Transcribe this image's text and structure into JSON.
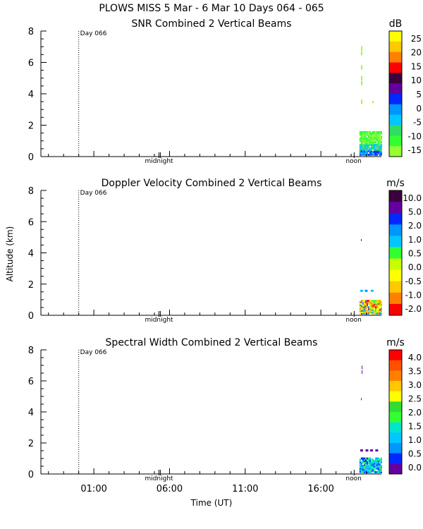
{
  "header": {
    "title": "PLOWS MISS   5 Mar -  6 Mar 10 Days 064 - 065"
  },
  "axes": {
    "x_title": "Time (UT)",
    "y_title": "Altitude (km)",
    "x_ticks": [
      "01:00",
      "06:00",
      "11:00",
      "16:00"
    ],
    "y_ticks": [
      "0",
      "2",
      "4",
      "6",
      "8"
    ],
    "day_marker": "Day 066",
    "midnight_label": "midnight",
    "noon_label": "noon"
  },
  "chart_data": [
    {
      "type": "heatmap",
      "title": "SNR Combined 2 Vertical Beams",
      "ylabel": "",
      "xlabel": "",
      "ylim": [
        0,
        8
      ],
      "colorbar": {
        "unit": "dB",
        "labels": [
          "25",
          "20",
          "15",
          "10",
          "5",
          "0",
          "-5",
          "-10",
          "-15"
        ],
        "colors": [
          "#ffff00",
          "#ffc800",
          "#ff8000",
          "#ff0000",
          "#3c003c",
          "#6400a0",
          "#0028ff",
          "#0096ff",
          "#00c8ff",
          "#32dc64",
          "#32ff32",
          "#96ff32"
        ]
      },
      "observations": "Returns only near end of period (~18:30-20:00 UT), mostly below 1.5 km with sparse points up to ~7 km"
    },
    {
      "type": "heatmap",
      "title": "Doppler Velocity Combined 2 Vertical Beams",
      "ylabel": "Altitude (km)",
      "xlabel": "",
      "ylim": [
        0,
        8
      ],
      "colorbar": {
        "unit": "m/s",
        "labels": [
          "10.0",
          "5.0",
          "2.0",
          "1.0",
          "0.5",
          "0.0",
          "-0.5",
          "-1.0",
          "-2.0"
        ],
        "colors": [
          "#3c003c",
          "#6400a0",
          "#0028ff",
          "#0096ff",
          "#00c8ff",
          "#32ff32",
          "#c8ff00",
          "#ffff00",
          "#ffc800",
          "#ff8000",
          "#ff0000"
        ]
      },
      "observations": "Returns only near end of period, below ~1.5 km"
    },
    {
      "type": "heatmap",
      "title": "Spectral Width Combined 2 Vertical Beams",
      "ylabel": "",
      "xlabel": "Time (UT)",
      "ylim": [
        0,
        8
      ],
      "colorbar": {
        "unit": "m/s",
        "labels": [
          "4.0",
          "3.5",
          "3.0",
          "2.5",
          "2.0",
          "1.5",
          "1.0",
          "0.5",
          "0.0"
        ],
        "colors": [
          "#ff0000",
          "#ff5000",
          "#ff8000",
          "#ffc800",
          "#ffff00",
          "#32dc32",
          "#32ff32",
          "#00e6c8",
          "#00c8ff",
          "#0096ff",
          "#0028ff",
          "#6400a0"
        ]
      },
      "observations": "Returns only near end of period, below ~1.5 km with sparse points near 6.5 km"
    }
  ]
}
